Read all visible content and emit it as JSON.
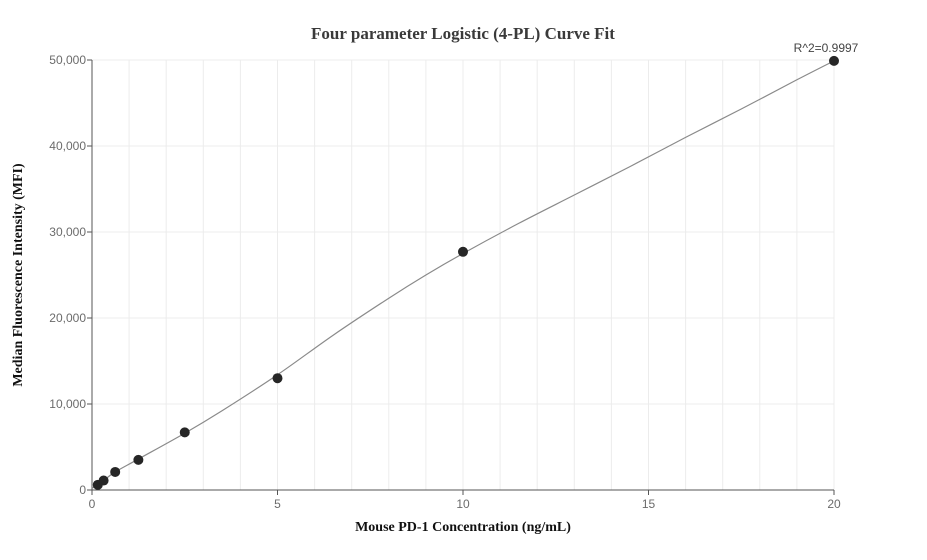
{
  "chart_data": {
    "type": "scatter",
    "title": "Four parameter Logistic (4-PL) Curve Fit",
    "xlabel": "Mouse PD-1 Concentration (ng/mL)",
    "ylabel": "Median Fluorescence Intensity (MFI)",
    "xlim": [
      0,
      20
    ],
    "ylim": [
      0,
      50000
    ],
    "x_ticks": [
      0,
      5,
      10,
      15,
      20
    ],
    "x_tick_labels": [
      "0",
      "5",
      "10",
      "15",
      "20"
    ],
    "y_ticks": [
      0,
      10000,
      20000,
      30000,
      40000,
      50000
    ],
    "y_tick_labels": [
      "0",
      "10,000",
      "20,000",
      "30,000",
      "40,000",
      "50,000"
    ],
    "grid": true,
    "points": [
      {
        "x": 0.156,
        "y": 600
      },
      {
        "x": 0.3125,
        "y": 1100
      },
      {
        "x": 0.625,
        "y": 2100
      },
      {
        "x": 1.25,
        "y": 3500
      },
      {
        "x": 2.5,
        "y": 6700
      },
      {
        "x": 5,
        "y": 13000
      },
      {
        "x": 10,
        "y": 27700
      },
      {
        "x": 20,
        "y": 49900
      }
    ],
    "fit_curve": {
      "x": [
        0,
        0.156,
        0.3125,
        0.625,
        1.25,
        2.5,
        3.5,
        5,
        6.5,
        8,
        9,
        10,
        11.5,
        13,
        14.5,
        16,
        17.5,
        19,
        20
      ],
      "y": [
        200,
        600,
        1100,
        2100,
        3600,
        6600,
        9200,
        13400,
        18000,
        22300,
        25000,
        27500,
        31000,
        34300,
        37600,
        41000,
        44300,
        47700,
        49900
      ]
    },
    "annotation": "R^2=0.9997",
    "colors": {
      "marker": "#262626",
      "curve": "#8a8a8a",
      "grid": "#ececec",
      "axis": "#555555"
    }
  }
}
